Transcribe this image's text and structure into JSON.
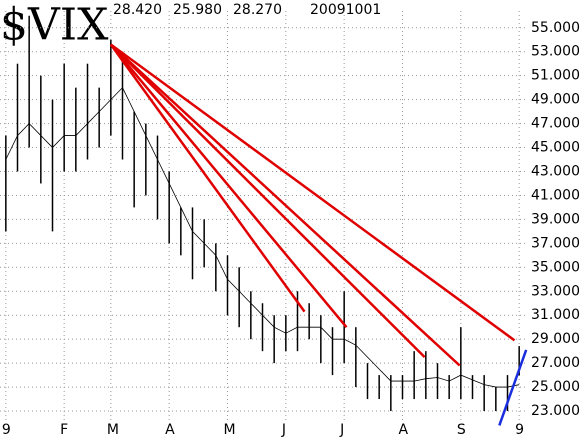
{
  "chart_data": {
    "type": "ohlc",
    "title": "$VIX",
    "header_values": [
      "28.420",
      "25.980",
      "28.270",
      "20091001"
    ],
    "categories": [
      "9",
      null,
      null,
      null,
      null,
      "F",
      null,
      null,
      null,
      "M",
      null,
      null,
      null,
      null,
      "A",
      null,
      null,
      null,
      null,
      "M",
      null,
      null,
      null,
      null,
      "J",
      null,
      null,
      null,
      null,
      "J",
      null,
      null,
      null,
      null,
      "A",
      null,
      null,
      null,
      null,
      "S",
      null,
      null,
      null,
      null,
      "9"
    ],
    "high": [
      46,
      52,
      56,
      51,
      49,
      52,
      50,
      52,
      50,
      54,
      53,
      48,
      47,
      46,
      43,
      40,
      40,
      39,
      37,
      36,
      35,
      33,
      32,
      31,
      31,
      33,
      32,
      31,
      30,
      33,
      30,
      27,
      26,
      26,
      26,
      28,
      28,
      27,
      26,
      30,
      26,
      26,
      25,
      26,
      28.42
    ],
    "low": [
      38,
      43,
      45,
      42,
      38,
      43,
      43,
      44,
      45,
      46,
      44,
      40,
      41,
      39,
      37,
      36,
      34,
      35,
      33,
      31,
      30,
      29,
      28,
      27,
      28,
      28,
      29,
      27,
      26,
      27,
      25,
      24,
      24,
      23,
      24,
      24,
      24,
      24,
      24,
      24,
      24,
      23,
      23,
      23,
      25.98
    ],
    "bar_color": "#000000",
    "ma": {
      "color": "#000000",
      "values": [
        44,
        46,
        47,
        46,
        45,
        46,
        46,
        47,
        48,
        49,
        50,
        48,
        46,
        44,
        42,
        40,
        38,
        37,
        36,
        34,
        33,
        32,
        31,
        30,
        29.5,
        30,
        30,
        30,
        29,
        29,
        28.5,
        27.5,
        26.5,
        25.5,
        25.5,
        25.5,
        25.7,
        25.8,
        25.5,
        26,
        25.6,
        25.2,
        25,
        25,
        25.2
      ]
    },
    "lines": [
      {
        "color": "#e00000",
        "x": [
          9,
          25.6
        ],
        "y": [
          53.6,
          31.3
        ]
      },
      {
        "color": "#e00000",
        "x": [
          9,
          29.2
        ],
        "y": [
          53.6,
          30.0
        ]
      },
      {
        "color": "#e00000",
        "x": [
          9,
          35.9
        ],
        "y": [
          53.6,
          27.5
        ]
      },
      {
        "color": "#e00000",
        "x": [
          9,
          38.9
        ],
        "y": [
          53.6,
          26.8
        ]
      },
      {
        "color": "#e00000",
        "x": [
          9,
          43.6
        ],
        "y": [
          53.6,
          28.9
        ]
      },
      {
        "color": "#1a2ee0",
        "x": [
          42.3,
          44.6
        ],
        "y": [
          21.8,
          28.1
        ]
      }
    ],
    "ylim": [
      22,
      56.4
    ],
    "yticks": [
      {
        "value": 23,
        "label": "23.000"
      },
      {
        "value": 25,
        "label": "25.000"
      },
      {
        "value": 27,
        "label": "27.000"
      },
      {
        "value": 29,
        "label": "29.000"
      },
      {
        "value": 31,
        "label": "31.000"
      },
      {
        "value": 33,
        "label": "33.000"
      },
      {
        "value": 35,
        "label": "35.000"
      },
      {
        "value": 37,
        "label": "37.000"
      },
      {
        "value": 39,
        "label": "39.000"
      },
      {
        "value": 41,
        "label": "41.000"
      },
      {
        "value": 43,
        "label": "43.000"
      },
      {
        "value": 45,
        "label": "45.000"
      },
      {
        "value": 47,
        "label": "47.000"
      },
      {
        "value": 49,
        "label": "49.000"
      },
      {
        "value": 51,
        "label": "51.000"
      },
      {
        "value": 53,
        "label": "53.000"
      },
      {
        "value": 55,
        "label": "55.000"
      }
    ],
    "grid": true
  }
}
